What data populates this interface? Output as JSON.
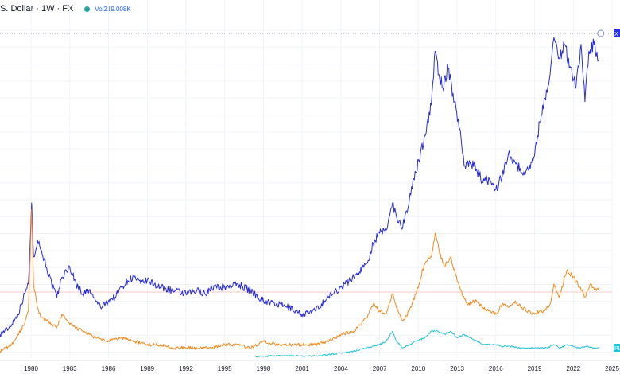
{
  "header": {
    "symbol_title": "S. Dollar · 1W · FX",
    "volume_label": "Vol",
    "volume_value": "219.008K",
    "status_dot_color": "#26a69a",
    "volume_color": "#2962ff"
  },
  "right_tags": {
    "blue_tag": "X",
    "cyan_tag": "PL"
  },
  "chart_data": {
    "type": "line",
    "title": "",
    "xlabel": "",
    "ylabel": "",
    "x_ticks": [
      "1980",
      "1983",
      "1986",
      "1989",
      "1992",
      "1995",
      "1998",
      "2001",
      "2004",
      "2007",
      "2010",
      "2013",
      "2016",
      "2019",
      "2022",
      "2025"
    ],
    "xlim": [
      1977.6,
      2025.0
    ],
    "ylim": [
      0,
      100
    ],
    "grid": true,
    "series": [
      {
        "color": "#2a2ed6",
        "x": [
          1977.6,
          1978.3,
          1979.0,
          1979.5,
          1979.8,
          1980.05,
          1980.2,
          1980.5,
          1980.8,
          1981.2,
          1981.6,
          1982.0,
          1982.4,
          1983.0,
          1983.5,
          1984.0,
          1984.5,
          1985.0,
          1985.5,
          1986.0,
          1986.5,
          1987.0,
          1987.5,
          1988.0,
          1988.5,
          1989.0,
          1990.0,
          1991.0,
          1992.0,
          1993.0,
          1993.5,
          1994.0,
          1995.0,
          1996.0,
          1997.0,
          1998.0,
          1999.0,
          2000.0,
          2001.0,
          2002.0,
          2003.0,
          2004.0,
          2005.0,
          2006.0,
          2006.5,
          2007.0,
          2007.5,
          2008.0,
          2008.3,
          2008.8,
          2009.3,
          2009.8,
          2010.5,
          2011.0,
          2011.3,
          2011.6,
          2011.9,
          2012.3,
          2012.8,
          2013.2,
          2013.6,
          2014.0,
          2014.5,
          2015.0,
          2015.5,
          2016.0,
          2016.5,
          2017.0,
          2017.5,
          2018.0,
          2018.5,
          2019.0,
          2019.4,
          2019.8,
          2020.2,
          2020.5,
          2020.9,
          2021.3,
          2021.8,
          2022.2,
          2022.6,
          2022.9,
          2023.2,
          2023.6,
          2024.0
        ],
        "y": [
          7,
          9,
          13,
          19,
          22,
          46,
          30,
          35,
          32,
          27,
          22,
          18,
          24,
          27,
          22,
          19,
          20,
          17,
          15,
          17,
          18,
          21,
          23,
          24,
          22,
          23,
          21,
          20,
          19,
          20,
          19,
          21,
          21,
          22,
          20,
          17,
          16,
          15,
          13,
          14,
          18,
          21,
          24,
          28,
          34,
          37,
          38,
          46,
          42,
          39,
          47,
          55,
          66,
          75,
          91,
          84,
          80,
          86,
          76,
          68,
          57,
          58,
          56,
          52,
          53,
          50,
          54,
          61,
          58,
          55,
          56,
          60,
          70,
          77,
          84,
          95,
          89,
          93,
          86,
          80,
          93,
          76,
          91,
          93,
          88
        ]
      },
      {
        "color": "#f28a1e",
        "x": [
          1977.6,
          1978.5,
          1979.0,
          1979.5,
          1979.8,
          1980.05,
          1980.2,
          1980.5,
          1980.8,
          1981.2,
          1981.6,
          1982.0,
          1982.4,
          1983.0,
          1983.5,
          1984.0,
          1985.0,
          1986.0,
          1987.0,
          1988.0,
          1989.0,
          1990.0,
          1991.0,
          1992.0,
          1993.0,
          1994.0,
          1995.0,
          1996.0,
          1997.0,
          1998.0,
          1999.0,
          2000.0,
          2001.0,
          2002.0,
          2003.0,
          2004.0,
          2005.0,
          2006.0,
          2006.5,
          2007.0,
          2007.5,
          2008.0,
          2008.3,
          2008.8,
          2009.3,
          2009.8,
          2010.5,
          2011.0,
          2011.3,
          2011.6,
          2012.0,
          2012.5,
          2013.0,
          2013.3,
          2013.8,
          2014.5,
          2015.0,
          2015.5,
          2016.0,
          2016.5,
          2017.0,
          2017.5,
          2018.0,
          2018.5,
          2019.0,
          2019.4,
          2019.8,
          2020.2,
          2020.5,
          2020.9,
          2021.5,
          2022.0,
          2022.5,
          2022.9,
          2023.3,
          2023.8,
          2024.0
        ],
        "y": [
          2,
          4,
          7,
          10,
          14,
          44,
          22,
          15,
          12,
          11,
          10,
          9,
          13,
          10,
          9,
          8,
          6,
          5,
          6,
          5,
          4,
          4,
          3,
          3,
          3,
          3,
          4,
          4,
          3,
          5,
          4,
          4,
          4,
          4,
          5,
          7,
          8,
          12,
          16,
          14,
          13,
          19,
          15,
          11,
          14,
          19,
          28,
          30,
          37,
          32,
          27,
          30,
          23,
          20,
          16,
          17,
          15,
          14,
          13,
          16,
          15,
          17,
          15,
          14,
          13,
          14,
          14,
          16,
          22,
          18,
          26,
          24,
          21,
          18,
          22,
          20,
          21
        ]
      },
      {
        "color": "#22c4d6",
        "x": [
          1997.4,
          1998.0,
          1999.0,
          2000.0,
          2001.0,
          2002.0,
          2003.0,
          2004.0,
          2005.0,
          2006.0,
          2007.0,
          2007.5,
          2008.0,
          2008.3,
          2008.8,
          2009.3,
          2009.8,
          2010.5,
          2011.0,
          2011.5,
          2012.0,
          2012.5,
          2013.0,
          2013.5,
          2014.0,
          2015.0,
          2016.0,
          2016.5,
          2017.0,
          2018.0,
          2019.0,
          2020.0,
          2020.5,
          2021.0,
          2021.5,
          2022.0,
          2022.5,
          2023.0,
          2023.5,
          2024.0
        ],
        "y": [
          0.5,
          0.5,
          0.7,
          0.7,
          0.6,
          0.6,
          1,
          1.5,
          2,
          3,
          4,
          5,
          8,
          5,
          3,
          4,
          5,
          6,
          8,
          8,
          7,
          8,
          6,
          7,
          6,
          4,
          4,
          3.5,
          3.5,
          3,
          3,
          3,
          4,
          3,
          4,
          3.5,
          3,
          3.5,
          3,
          3
        ]
      }
    ]
  }
}
